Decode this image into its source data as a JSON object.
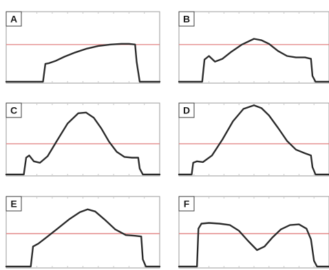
{
  "chart_data": [
    {
      "type": "line",
      "panel_label": "A",
      "reference_line": 0.54,
      "ylim": [
        0,
        1
      ],
      "xlim": [
        0,
        1
      ],
      "grid": false,
      "series": [
        {
          "x": [
            0,
            0.24,
            0.255,
            0.28,
            0.32,
            0.38,
            0.45,
            0.52,
            0.6,
            0.68,
            0.75,
            0.8,
            0.84,
            0.85,
            0.87,
            1
          ],
          "values": [
            0.02,
            0.02,
            0.27,
            0.28,
            0.31,
            0.37,
            0.43,
            0.48,
            0.52,
            0.54,
            0.55,
            0.55,
            0.54,
            0.3,
            0.02,
            0.02
          ]
        }
      ]
    },
    {
      "type": "line",
      "panel_label": "B",
      "reference_line": 0.54,
      "ylim": [
        0,
        1
      ],
      "xlim": [
        0,
        1
      ],
      "grid": false,
      "series": [
        {
          "x": [
            0,
            0.155,
            0.17,
            0.2,
            0.24,
            0.29,
            0.35,
            0.42,
            0.5,
            0.55,
            0.6,
            0.66,
            0.72,
            0.78,
            0.84,
            0.88,
            0.89,
            0.91,
            1
          ],
          "values": [
            0.02,
            0.02,
            0.33,
            0.38,
            0.3,
            0.34,
            0.44,
            0.54,
            0.62,
            0.6,
            0.55,
            0.45,
            0.38,
            0.36,
            0.36,
            0.34,
            0.1,
            0.02,
            0.02
          ]
        }
      ]
    },
    {
      "type": "line",
      "panel_label": "C",
      "reference_line": 0.44,
      "ylim": [
        0,
        1
      ],
      "xlim": [
        0,
        1
      ],
      "grid": false,
      "series": [
        {
          "x": [
            0,
            0.115,
            0.13,
            0.15,
            0.18,
            0.22,
            0.27,
            0.33,
            0.4,
            0.47,
            0.52,
            0.57,
            0.62,
            0.67,
            0.72,
            0.77,
            0.82,
            0.86,
            0.87,
            0.89,
            1
          ],
          "values": [
            0.02,
            0.02,
            0.25,
            0.28,
            0.2,
            0.18,
            0.27,
            0.48,
            0.72,
            0.86,
            0.87,
            0.8,
            0.65,
            0.47,
            0.33,
            0.26,
            0.25,
            0.25,
            0.1,
            0.02,
            0.02
          ]
        }
      ]
    },
    {
      "type": "line",
      "panel_label": "D",
      "reference_line": 0.44,
      "ylim": [
        0,
        1
      ],
      "xlim": [
        0,
        1
      ],
      "grid": false,
      "series": [
        {
          "x": [
            0,
            0.085,
            0.095,
            0.12,
            0.16,
            0.22,
            0.29,
            0.36,
            0.43,
            0.5,
            0.55,
            0.6,
            0.66,
            0.72,
            0.78,
            0.84,
            0.88,
            0.89,
            0.91,
            1
          ],
          "values": [
            0.02,
            0.02,
            0.18,
            0.2,
            0.19,
            0.28,
            0.5,
            0.75,
            0.92,
            0.97,
            0.93,
            0.83,
            0.66,
            0.48,
            0.36,
            0.31,
            0.28,
            0.12,
            0.02,
            0.02
          ]
        }
      ]
    },
    {
      "type": "line",
      "panel_label": "E",
      "reference_line": 0.48,
      "ylim": [
        0,
        1
      ],
      "xlim": [
        0,
        1
      ],
      "grid": false,
      "series": [
        {
          "x": [
            0,
            0.16,
            0.175,
            0.21,
            0.27,
            0.34,
            0.41,
            0.48,
            0.53,
            0.58,
            0.64,
            0.71,
            0.78,
            0.84,
            0.88,
            0.89,
            0.91,
            1
          ],
          "values": [
            0.02,
            0.02,
            0.3,
            0.34,
            0.44,
            0.56,
            0.68,
            0.78,
            0.82,
            0.79,
            0.68,
            0.54,
            0.46,
            0.45,
            0.44,
            0.12,
            0.02,
            0.02
          ]
        }
      ]
    },
    {
      "type": "line",
      "panel_label": "F",
      "reference_line": 0.48,
      "ylim": [
        0,
        1
      ],
      "xlim": [
        0,
        1
      ],
      "grid": false,
      "series": [
        {
          "x": [
            0,
            0.12,
            0.13,
            0.15,
            0.2,
            0.27,
            0.34,
            0.4,
            0.46,
            0.52,
            0.57,
            0.62,
            0.68,
            0.74,
            0.8,
            0.85,
            0.88,
            0.9,
            0.92,
            1
          ],
          "values": [
            0.02,
            0.02,
            0.55,
            0.62,
            0.63,
            0.62,
            0.6,
            0.52,
            0.38,
            0.25,
            0.3,
            0.42,
            0.54,
            0.6,
            0.61,
            0.55,
            0.4,
            0.1,
            0.02,
            0.02
          ]
        }
      ]
    }
  ],
  "colors": {
    "frame": "#9a9a9a",
    "curve": "#2b2b2b",
    "reference": "#e07f7f",
    "label_bg": "#ffffff",
    "label_border": "#3a3a3a"
  }
}
